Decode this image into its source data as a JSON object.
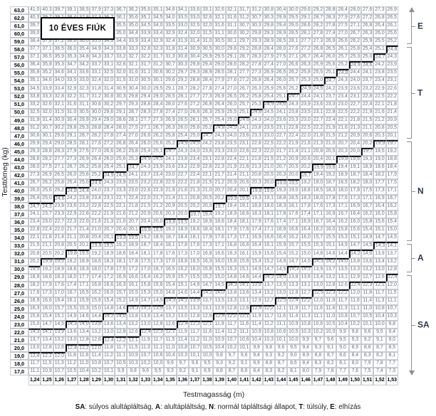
{
  "title_box": "10 ÉVES FIÚK",
  "y_axis_label": "Testtömeg (kg)",
  "x_axis_label": "Testmagasság (m)",
  "chart_data": {
    "type": "table",
    "title": "10 ÉVES FIÚK",
    "x_label": "Testmagasság (m)",
    "y_label": "Testtömeg (kg)",
    "weights_kg": [
      63,
      62,
      61,
      60,
      59,
      58,
      57,
      56,
      55,
      54,
      53,
      52,
      51,
      50,
      49,
      48,
      47,
      46,
      45,
      44,
      43,
      42,
      41,
      40,
      39,
      38,
      37,
      36,
      35,
      34,
      33,
      32,
      31,
      30,
      29,
      28,
      27,
      26,
      25,
      24,
      23,
      22,
      21,
      20,
      19,
      18,
      17
    ],
    "heights_m": [
      1.24,
      1.25,
      1.26,
      1.27,
      1.28,
      1.29,
      1.3,
      1.31,
      1.32,
      1.33,
      1.34,
      1.35,
      1.36,
      1.37,
      1.38,
      1.39,
      1.4,
      1.41,
      1.42,
      1.43,
      1.44,
      1.45,
      1.46,
      1.47,
      1.48,
      1.49,
      1.5,
      1.51,
      1.52,
      1.53
    ],
    "cell_rule": "cell = weight / height^2 (BMI), shown with 1 decimal, comma as decimal separator",
    "zone_rule_on_displayed_bmi": {
      "E_min": 25.0,
      "T_min": 20.0,
      "N_min": 14.4,
      "A_min": 12.6
    },
    "zones": [
      {
        "code": "SA",
        "label": "súlyos alultápláltság"
      },
      {
        "code": "A",
        "label": "alultápláltság"
      },
      {
        "code": "N",
        "label": "normál tápláltsági állapot"
      },
      {
        "code": "T",
        "label": "túlsúly"
      },
      {
        "code": "E",
        "label": "elhízás"
      }
    ],
    "zone_markers_top_to_bottom": [
      "E",
      "T",
      "N",
      "A",
      "SA"
    ]
  },
  "legend": {
    "separator": ", "
  }
}
